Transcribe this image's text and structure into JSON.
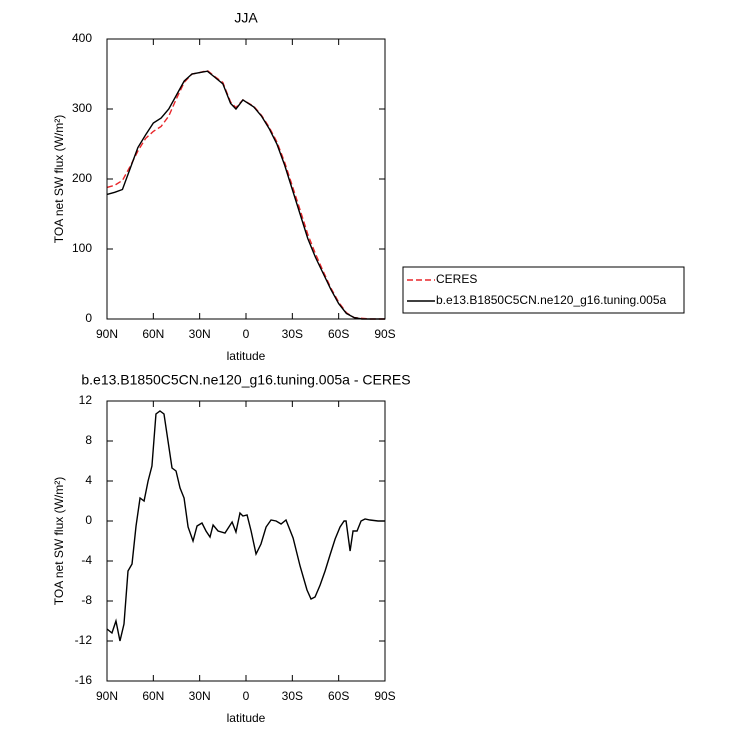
{
  "chart_data": [
    {
      "type": "line",
      "title": "JJA",
      "xlabel": "latitude",
      "ylabel": "TOA net SW flux (W/m²)",
      "xlim": [
        90,
        -90
      ],
      "xticks": [
        {
          "value": 90,
          "label": "90N"
        },
        {
          "value": 60,
          "label": "60N"
        },
        {
          "value": 30,
          "label": "30N"
        },
        0,
        {
          "value": -30,
          "label": "30S"
        },
        {
          "value": -60,
          "label": "60S"
        },
        {
          "value": -90,
          "label": "90S"
        }
      ],
      "ylim": [
        0,
        400
      ],
      "yticks": [
        0,
        100,
        200,
        300,
        400
      ],
      "legend": "right",
      "x": [
        90,
        85,
        80,
        75,
        70,
        65,
        60,
        55,
        50,
        45,
        40,
        35,
        30,
        25,
        20,
        15,
        10,
        6.5,
        2,
        -5,
        -10,
        -15,
        -20,
        -25,
        -30,
        -35,
        -40,
        -45,
        -50,
        -55,
        -60,
        -65,
        -70,
        -75,
        -80,
        -85,
        -90
      ],
      "series": [
        {
          "name": "CERES",
          "color": "#e8262a",
          "style": "dashed",
          "values": [
            188,
            191,
            198,
            218,
            240,
            258,
            268,
            275,
            290,
            315,
            338,
            350,
            352,
            355,
            346,
            338,
            310,
            302,
            313,
            304,
            291,
            274,
            253,
            224,
            190,
            156,
            121,
            93,
            68,
            44,
            24,
            9,
            2,
            1,
            0,
            0,
            0
          ]
        },
        {
          "name": "b.e13.B1850C5CN.ne120_g16.tuning.005a",
          "color": "#000000",
          "style": "solid",
          "values": [
            178,
            181,
            185,
            215,
            245,
            263,
            280,
            287,
            300,
            320,
            340,
            350,
            352,
            354,
            345,
            336,
            308,
            300,
            313,
            303,
            290,
            272,
            250,
            220,
            185,
            150,
            115,
            88,
            65,
            42,
            22,
            8,
            2,
            0,
            0,
            0,
            0
          ]
        }
      ]
    },
    {
      "type": "line",
      "title": "b.e13.B1850C5CN.ne120_g16.tuning.005a - CERES",
      "xlabel": "latitude",
      "ylabel": "TOA net SW flux (W/m²)",
      "xlim": [
        90,
        -90
      ],
      "xticks": [
        {
          "value": 90,
          "label": "90N"
        },
        {
          "value": 60,
          "label": "60N"
        },
        {
          "value": 30,
          "label": "30N"
        },
        0,
        {
          "value": -30,
          "label": "30S"
        },
        {
          "value": -60,
          "label": "60S"
        },
        {
          "value": -90,
          "label": "90S"
        }
      ],
      "ylim": [
        -16,
        12
      ],
      "yticks": [
        -16,
        -12,
        -8,
        -4,
        0,
        4,
        8,
        12
      ],
      "x": [
        90,
        86.8,
        84.2,
        81.6,
        79,
        76.4,
        73.8,
        71.2,
        68.6,
        66,
        63.4,
        60.9,
        58.3,
        55.7,
        53.1,
        50.5,
        47.9,
        45.3,
        42.7,
        40.1,
        37.5,
        34.3,
        31.7,
        28.5,
        25.9,
        23.3,
        21.3,
        18.1,
        13.6,
        9,
        6.5,
        3.9,
        2,
        -0.7,
        -3.3,
        -6.5,
        -9.7,
        -13,
        -16.2,
        -19.5,
        -22.7,
        -25.9,
        -30.5,
        -35,
        -39.5,
        -42.1,
        -44.7,
        -48,
        -51.2,
        -54.4,
        -57.7,
        -60.9,
        -63.5,
        -64.8,
        -67.4,
        -69.3,
        -71.9,
        -74.5,
        -77.1,
        -80.3,
        -85.5,
        -90
      ],
      "series": [
        {
          "name": "b.e13.B1850C5CN.ne120_g16.tuning.005a - CERES",
          "color": "#000000",
          "style": "solid",
          "values": [
            -10.8,
            -11.2,
            -10,
            -12,
            -10.3,
            -5,
            -4.3,
            -0.5,
            2.3,
            2,
            4,
            5.5,
            10.7,
            11,
            10.7,
            8,
            5.3,
            5,
            3.3,
            2.3,
            -0.6,
            -2,
            -0.5,
            -0.2,
            -1,
            -1.6,
            -0.4,
            -1,
            -1.2,
            -0.1,
            -1.1,
            0.8,
            0.5,
            0.6,
            -1,
            -3.3,
            -2.3,
            -0.6,
            0.1,
            0,
            -0.3,
            0.1,
            -1.7,
            -4.5,
            -6.9,
            -7.8,
            -7.6,
            -6.4,
            -5,
            -3.4,
            -1.8,
            -0.6,
            0,
            0,
            -3,
            -1,
            -1,
            0,
            0.2,
            0.1,
            0,
            0
          ]
        }
      ]
    }
  ]
}
